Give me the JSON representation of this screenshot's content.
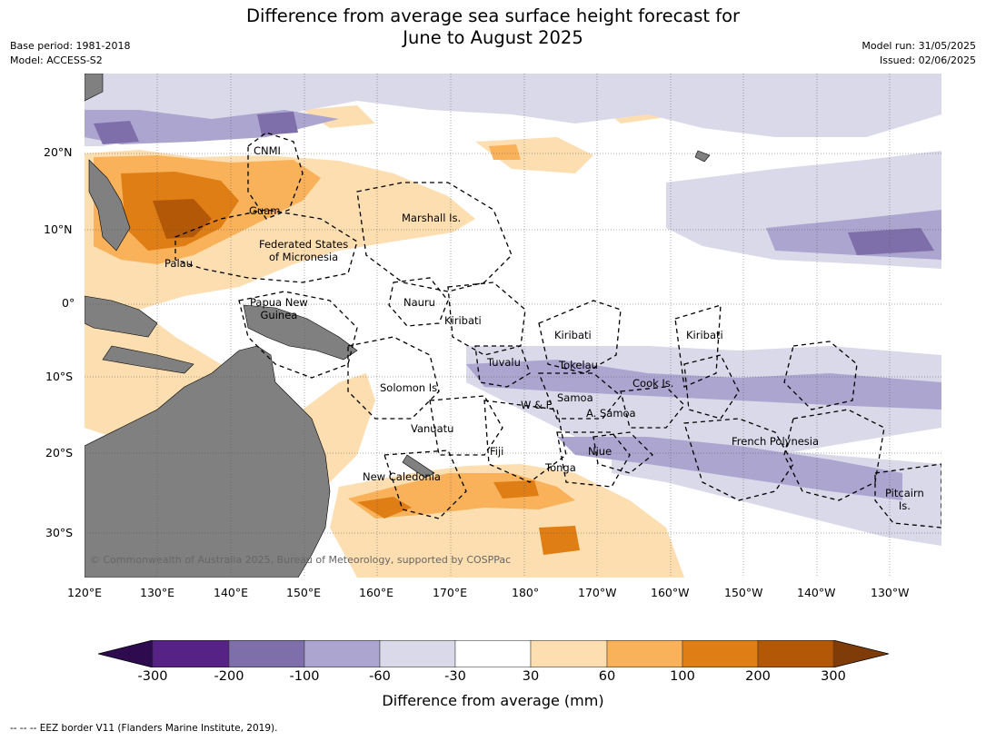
{
  "title_line1": "Difference from average sea surface height forecast for",
  "title_line2": "June to August 2025",
  "meta_left": {
    "base_period": "Base period: 1981-2018",
    "model": "Model: ACCESS-S2"
  },
  "meta_right": {
    "model_run": "Model run: 31/05/2025",
    "issued": "Issued: 02/06/2025"
  },
  "lat_labels": [
    "20°N",
    "10°N",
    "0°",
    "10°S",
    "20°S",
    "30°S"
  ],
  "lon_labels": [
    "120°E",
    "130°E",
    "140°E",
    "150°E",
    "160°E",
    "170°E",
    "180°",
    "170°W",
    "160°W",
    "150°W",
    "140°W",
    "130°W"
  ],
  "places": {
    "cnmi": "CNMI",
    "guam": "Guam",
    "marshall": "Marshall Is.",
    "fsm_1": "Federated States",
    "fsm_2": "of Micronesia",
    "palau": "Palau",
    "png_1": "Papua New",
    "png_2": "Guinea",
    "nauru": "Nauru",
    "kiribati_w": "Kiribati",
    "kiribati_c": "Kiribati",
    "kiribati_e": "Kiribati",
    "tuvalu": "Tuvalu",
    "tokelau": "Tokelau",
    "solomon": "Solomon Is.",
    "samoa": "Samoa",
    "wf": "W & F",
    "asamoa": "A. Samoa",
    "cook": "Cook Is.",
    "vanuatu": "Vanuatu",
    "fiji": "Fiji",
    "niue": "Niue",
    "tonga": "Tonga",
    "frenchpoly": "French Polynesia",
    "newcal": "New Caledonia",
    "pitcairn_1": "Pitcairn",
    "pitcairn_2": "Is."
  },
  "copyright": "© Commonwealth of Australia 2025, Bureau of Meteorology, supported by COSPPac",
  "colorbar": {
    "ticks": [
      "-300",
      "-200",
      "-100",
      "-60",
      "-30",
      "30",
      "60",
      "100",
      "200",
      "300"
    ],
    "colors": [
      "#2d0b4e",
      "#562285",
      "#7e6eaa",
      "#aba5cf",
      "#d9d9ea",
      "#ffffff",
      "#fddeb0",
      "#f9b25a",
      "#df7e14",
      "#b35806",
      "#7f3b08"
    ],
    "label": "Difference from average (mm)"
  },
  "footnote": "--  --  -- EEZ border V11 (Flanders Marine Institute, 2019)."
}
